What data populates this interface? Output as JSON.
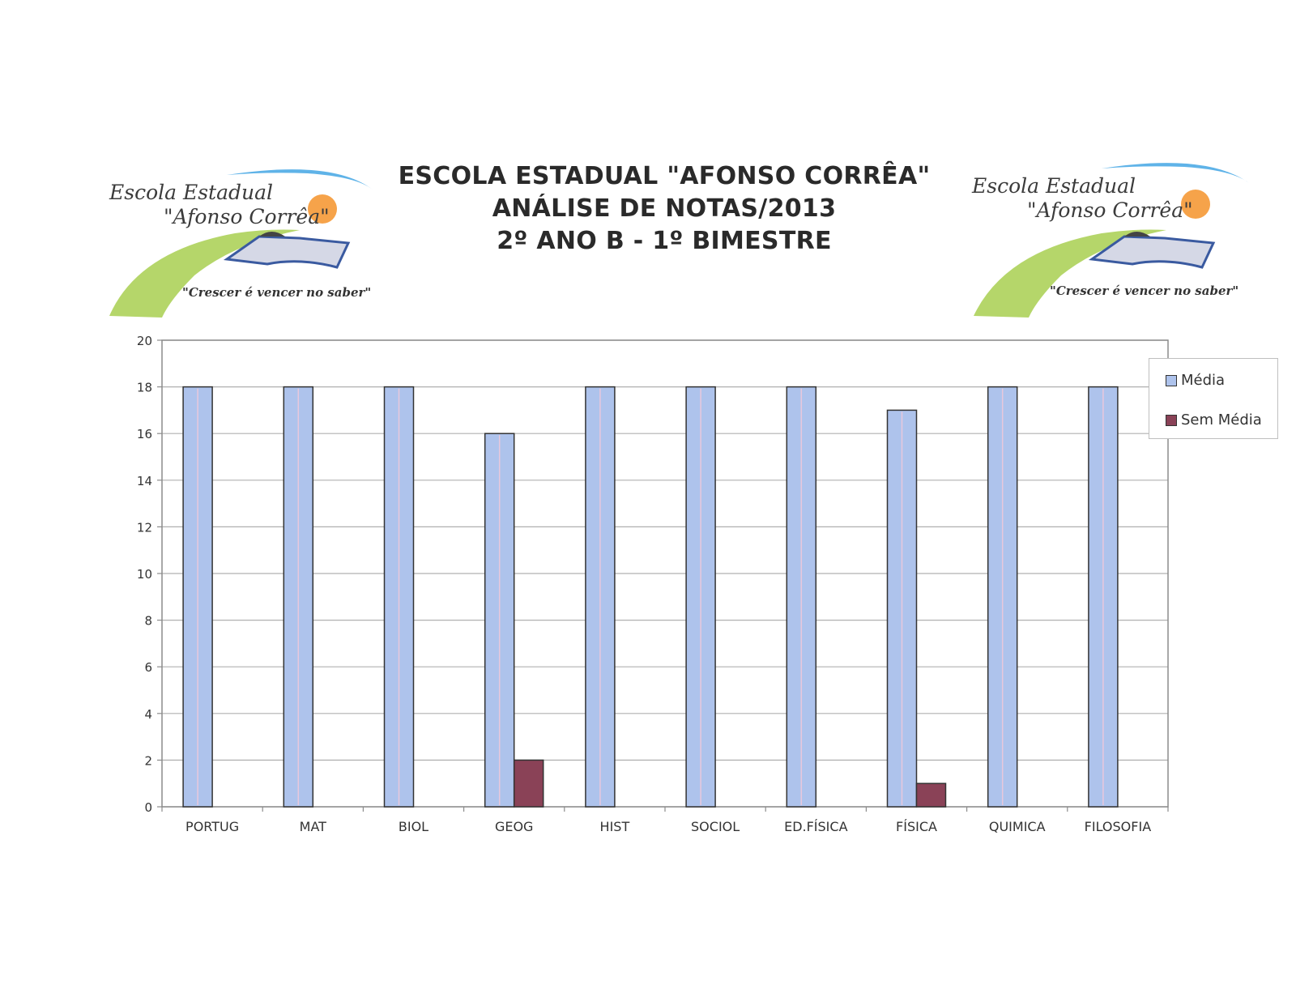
{
  "header": {
    "title_lines": [
      "ESCOLA ESTADUAL \"AFONSO CORRÊA\"",
      "ANÁLISE DE NOTAS/2013",
      "2º ANO B - 1º BIMESTRE"
    ]
  },
  "logo": {
    "line1": "Escola Estadual",
    "line2": "\"Afonso Corrêa\"",
    "slogan": "\"Crescer é vencer no saber\""
  },
  "colors": {
    "media": "#aec3ec",
    "sem_media": "#8a4257",
    "gridline": "#b0b0b0",
    "frame": "#8c8c8c"
  },
  "chart_data": {
    "type": "bar",
    "title": "",
    "xlabel": "",
    "ylabel": "",
    "ylim": [
      0,
      20
    ],
    "yticks": [
      0,
      2,
      4,
      6,
      8,
      10,
      12,
      14,
      16,
      18,
      20
    ],
    "grid": true,
    "legend_position": "right",
    "categories": [
      "PORTUG",
      "MAT",
      "BIOL",
      "GEOG",
      "HIST",
      "SOCIOL",
      "ED.FÍSICA",
      "FÍSICA",
      "QUIMICA",
      "FILOSOFIA"
    ],
    "series": [
      {
        "name": "Média",
        "values": [
          18,
          18,
          18,
          16,
          18,
          18,
          18,
          17,
          18,
          18
        ]
      },
      {
        "name": "Sem Média",
        "values": [
          0,
          0,
          0,
          2,
          0,
          0,
          0,
          1,
          0,
          0
        ]
      }
    ]
  }
}
